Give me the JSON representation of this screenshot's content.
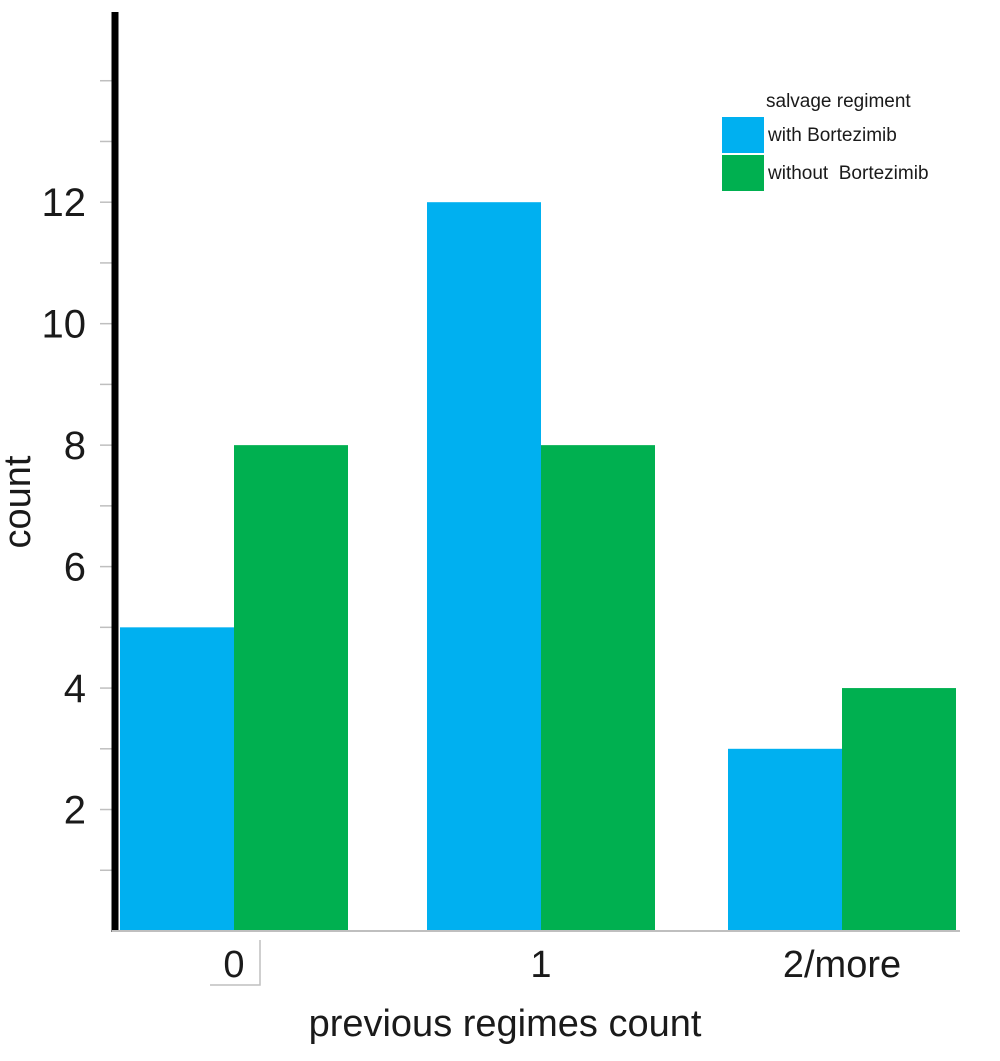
{
  "chart_data": {
    "type": "bar",
    "categories": [
      "0",
      "1",
      "2/more"
    ],
    "series": [
      {
        "name": "with Bortezimib",
        "values": [
          5,
          12,
          3
        ],
        "color": "#00b0f0"
      },
      {
        "name": "without  Bortezimib",
        "values": [
          8,
          8,
          4
        ],
        "color": "#00b050"
      }
    ],
    "legend_title": "salvage regiment",
    "legend_position": "top-right",
    "xlabel": "previous regimes count",
    "ylabel": "count",
    "yticks": [
      2,
      4,
      6,
      8,
      10,
      12
    ],
    "ylim": [
      0,
      15
    ],
    "grid": false
  }
}
